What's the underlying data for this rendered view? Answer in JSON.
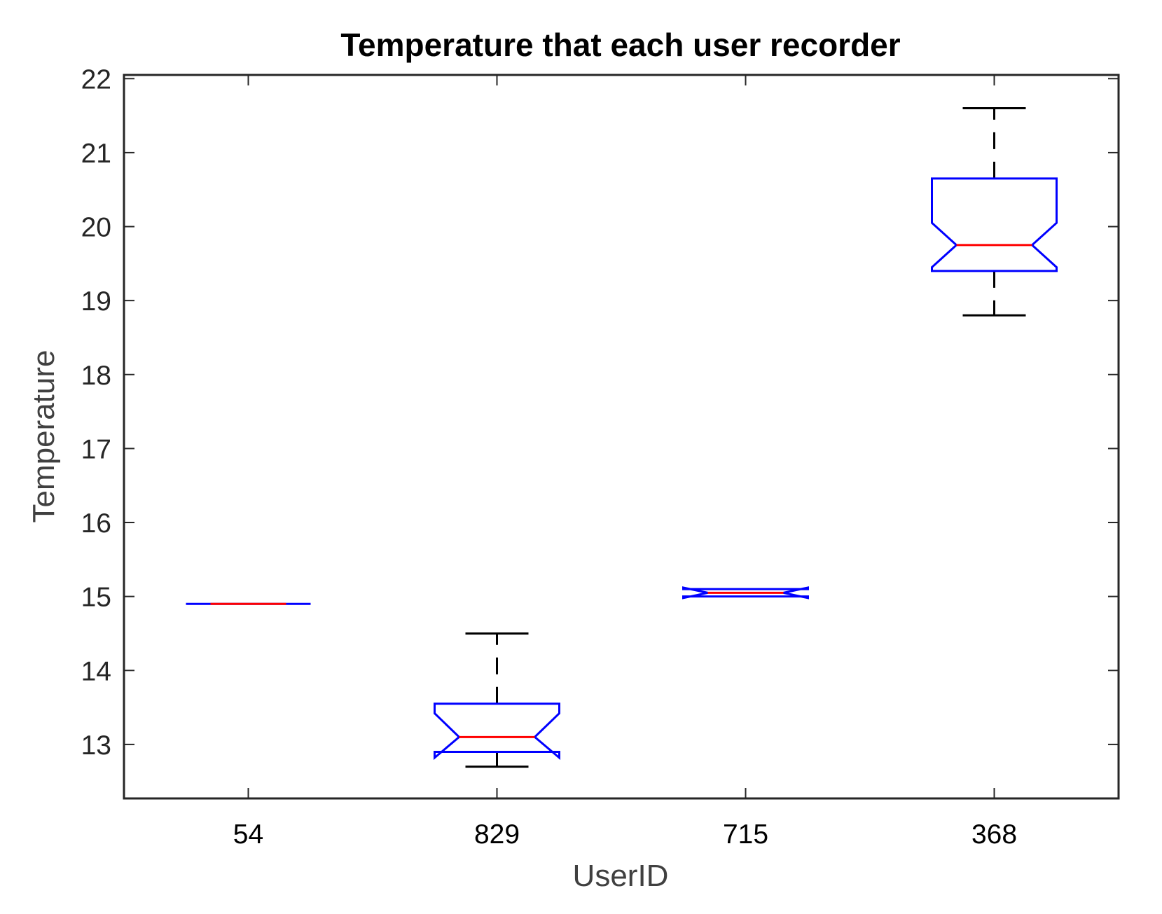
{
  "chart_data": {
    "type": "box",
    "title": "Temperature that each user recorder",
    "xlabel": "UserID",
    "ylabel": "Temperature",
    "ylim": [
      12.27,
      22.05
    ],
    "yticks": [
      13,
      14,
      15,
      16,
      17,
      18,
      19,
      20,
      21,
      22
    ],
    "notched": true,
    "grid": false,
    "colors": {
      "box": "#0000ff",
      "median": "#ff0000",
      "whisker": "#000000",
      "axes": "#262626"
    },
    "categories": [
      "54",
      "829",
      "715",
      "368"
    ],
    "boxes": [
      {
        "category": "54",
        "whisker_low": 14.9,
        "q1": 14.9,
        "median": 14.9,
        "q3": 14.9,
        "whisker_high": 14.9,
        "notch_low": 14.9,
        "notch_high": 14.9
      },
      {
        "category": "829",
        "whisker_low": 12.7,
        "q1": 12.9,
        "median": 13.1,
        "q3": 13.55,
        "whisker_high": 14.5,
        "notch_low": 12.82,
        "notch_high": 13.42
      },
      {
        "category": "715",
        "whisker_low": 15.0,
        "q1": 15.0,
        "median": 15.05,
        "q3": 15.1,
        "whisker_high": 15.1,
        "notch_low": 14.98,
        "notch_high": 15.12
      },
      {
        "category": "368",
        "whisker_low": 18.8,
        "q1": 19.4,
        "median": 19.75,
        "q3": 20.65,
        "whisker_high": 21.6,
        "notch_low": 19.45,
        "notch_high": 20.05
      }
    ]
  }
}
